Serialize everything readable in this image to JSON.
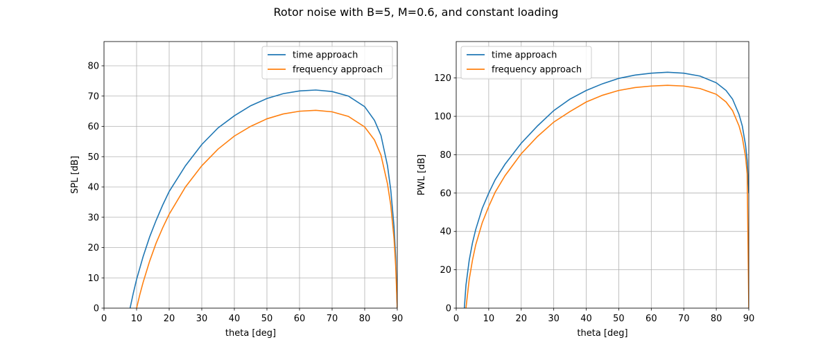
{
  "figure": {
    "title": "Rotor noise with B=5, M=0.6, and constant loading"
  },
  "colors": {
    "time": "#1f77b4",
    "frequency": "#ff7f0e",
    "grid": "#b0b0b0"
  },
  "chart_data": [
    {
      "type": "line",
      "xlabel": "theta [deg]",
      "ylabel": "SPL [dB]",
      "xlim": [
        0,
        90
      ],
      "ylim": [
        0,
        88
      ],
      "xticks": [
        0,
        10,
        20,
        30,
        40,
        50,
        60,
        70,
        80,
        90
      ],
      "yticks": [
        0,
        10,
        20,
        30,
        40,
        50,
        60,
        70,
        80
      ],
      "grid": true,
      "legend_position": "top-right",
      "series": [
        {
          "name": "time approach",
          "x": [
            8,
            9,
            10,
            12,
            14,
            16,
            18,
            20,
            25,
            30,
            35,
            40,
            45,
            50,
            55,
            60,
            65,
            70,
            75,
            80,
            83,
            85,
            87,
            88,
            89,
            89.5,
            90
          ],
          "y": [
            0,
            5,
            9.5,
            17,
            23.5,
            29,
            34,
            38.5,
            47,
            54,
            59.5,
            63.5,
            66.8,
            69.2,
            70.8,
            71.7,
            72,
            71.5,
            70,
            66.5,
            62,
            57,
            47,
            39,
            27,
            17,
            0
          ]
        },
        {
          "name": "frequency approach",
          "x": [
            10,
            11,
            12,
            14,
            16,
            18,
            20,
            25,
            30,
            35,
            40,
            45,
            50,
            55,
            60,
            65,
            70,
            75,
            80,
            83,
            85,
            87,
            88,
            89,
            89.5,
            90
          ],
          "y": [
            0,
            4.5,
            8.5,
            15.5,
            21.5,
            26.5,
            31,
            40,
            47,
            52.5,
            56.8,
            60,
            62.5,
            64.1,
            65,
            65.3,
            64.8,
            63.3,
            59.8,
            55.5,
            50.5,
            41,
            34,
            23,
            14,
            0
          ]
        }
      ]
    },
    {
      "type": "line",
      "xlabel": "theta [deg]",
      "ylabel": "PWL [dB]",
      "xlim": [
        0,
        90
      ],
      "ylim": [
        0,
        139
      ],
      "xticks": [
        0,
        10,
        20,
        30,
        40,
        50,
        60,
        70,
        80,
        90
      ],
      "yticks": [
        0,
        20,
        40,
        60,
        80,
        100,
        120
      ],
      "grid": true,
      "legend_position": "top-left",
      "series": [
        {
          "name": "time approach",
          "x": [
            2.5,
            3,
            4,
            5,
            6,
            8,
            10,
            12,
            15,
            20,
            25,
            30,
            35,
            40,
            45,
            50,
            55,
            60,
            65,
            70,
            75,
            80,
            83,
            85,
            87,
            88,
            89,
            89.5,
            90
          ],
          "y": [
            0,
            12,
            25,
            34,
            41,
            52,
            60,
            67,
            75,
            86,
            95,
            103,
            109,
            113.5,
            117,
            119.8,
            121.5,
            122.5,
            123,
            122.5,
            121,
            117.5,
            113.5,
            109,
            101,
            95,
            85,
            77,
            60
          ]
        },
        {
          "name": "frequency approach",
          "x": [
            3,
            4,
            5,
            6,
            8,
            10,
            12,
            15,
            20,
            25,
            30,
            35,
            40,
            45,
            50,
            55,
            60,
            65,
            70,
            75,
            80,
            83,
            85,
            87,
            88,
            89,
            89.5,
            90
          ],
          "y": [
            0,
            15,
            25,
            33,
            44.5,
            53,
            60.5,
            69,
            80.5,
            89.5,
            97,
            102.5,
            107.5,
            111,
            113.5,
            115,
            115.8,
            116.2,
            115.8,
            114.5,
            111.5,
            107.5,
            103,
            95,
            89,
            79,
            70,
            0
          ]
        }
      ]
    }
  ]
}
